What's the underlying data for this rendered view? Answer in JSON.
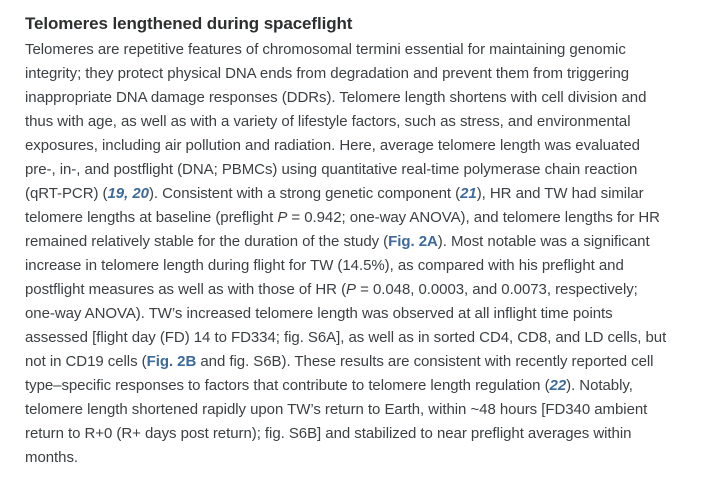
{
  "colors": {
    "background": "#ffffff",
    "heading_text": "#2d2f31",
    "body_text": "#3c4043",
    "link_blue": "#3d6a9b"
  },
  "article": {
    "heading": "Telomeres lengthened during spaceflight",
    "lines": [
      [
        {
          "t": "Telomeres are repetitive features of chromosomal termini essential for maintaining genomic"
        }
      ],
      [
        {
          "t": "integrity; they protect physical DNA ends from degradation and prevent them from triggering"
        }
      ],
      [
        {
          "t": "inappropriate DNA damage responses (DDRs). Telomere length shortens with cell division and"
        }
      ],
      [
        {
          "t": "thus with age, as well as with a variety of lifestyle factors, such as stress, and environmental"
        }
      ],
      [
        {
          "t": "exposures, including air pollution and radiation. Here, average telomere length was evaluated"
        }
      ],
      [
        {
          "t": "pre-, in-, and postflight (DNA; PBMCs) using quantitative real-time polymerase chain reaction"
        }
      ],
      [
        {
          "t": "(qRT-PCR) ("
        },
        {
          "t": "19",
          "s": "ref"
        },
        {
          "t": ", ",
          "s": "ref"
        },
        {
          "t": "20",
          "s": "ref"
        },
        {
          "t": "). Consistent with a strong genetic component ("
        },
        {
          "t": "21",
          "s": "ref"
        },
        {
          "t": "), HR and TW had similar"
        }
      ],
      [
        {
          "t": "telomere lengths at baseline (preflight "
        },
        {
          "t": "P",
          "s": "it"
        },
        {
          "t": " = 0.942; one-way ANOVA), and telomere lengths for HR"
        }
      ],
      [
        {
          "t": "remained relatively stable for the duration of the study ("
        },
        {
          "t": "Fig. 2A",
          "s": "fig"
        },
        {
          "t": "). Most notable was a significant"
        }
      ],
      [
        {
          "t": "increase in telomere length during flight for TW (14.5%), as compared with his preflight and"
        }
      ],
      [
        {
          "t": "postflight measures as well as with those of HR ("
        },
        {
          "t": "P",
          "s": "it"
        },
        {
          "t": " = 0.048, 0.0003, and 0.0073, respectively;"
        }
      ],
      [
        {
          "t": "one-way ANOVA). TW’s increased telomere length was observed at all inflight time points"
        }
      ],
      [
        {
          "t": "assessed [flight day (FD) 14 to FD334; fig. S6A], as well as in sorted CD4, CD8, and LD cells, but"
        }
      ],
      [
        {
          "t": "not in CD19 cells ("
        },
        {
          "t": "Fig. 2B",
          "s": "fig"
        },
        {
          "t": " and fig. S6B). These results are consistent with recently reported cell"
        }
      ],
      [
        {
          "t": "type–specific responses to factors that contribute to telomere length regulation ("
        },
        {
          "t": "22",
          "s": "ref"
        },
        {
          "t": "). Notably,"
        }
      ],
      [
        {
          "t": "telomere length shortened rapidly upon TW’s return to Earth, within ~48 hours [FD340 ambient"
        }
      ],
      [
        {
          "t": "return to R+0 (R+ days post return); fig. S6B] and stabilized to near preflight averages within"
        }
      ],
      [
        {
          "t": "months."
        }
      ]
    ]
  }
}
